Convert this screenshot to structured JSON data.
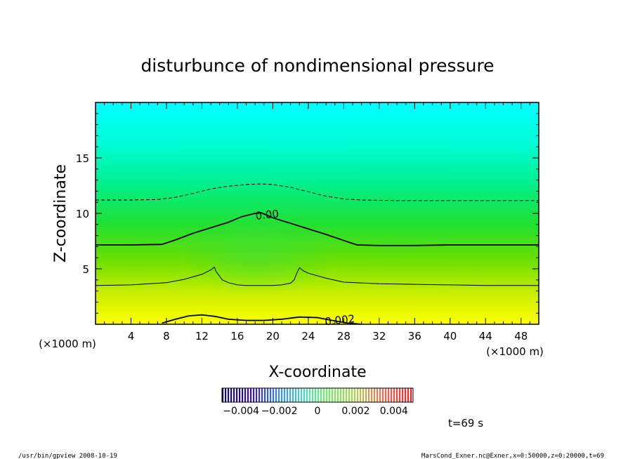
{
  "chart_data": {
    "type": "heatmap",
    "title": "disturbunce of nondimensional pressure",
    "xlabel": "X-coordinate",
    "ylabel": "Z-coordinate",
    "x_unit_left": "(×1000 m)",
    "x_unit_right": "(×1000 m)",
    "xlim": [
      0,
      50
    ],
    "ylim": [
      0,
      20
    ],
    "x_ticks": [
      4,
      8,
      12,
      16,
      20,
      24,
      28,
      32,
      36,
      40,
      44,
      48
    ],
    "y_ticks": [
      5,
      10,
      15
    ],
    "contours": [
      {
        "level": 0.002,
        "label": "0.002",
        "style": "solid",
        "x": [
          7.5,
          9,
          10.5,
          12,
          13.5,
          15,
          17,
          19,
          21,
          23,
          25,
          27,
          28.5,
          30
        ],
        "z": [
          0.1,
          0.45,
          0.75,
          0.85,
          0.7,
          0.45,
          0.35,
          0.35,
          0.45,
          0.65,
          0.6,
          0.3,
          0.1,
          0.0
        ]
      },
      {
        "level": 0.001,
        "label": "",
        "style": "thin",
        "x": [
          0,
          4,
          8,
          10,
          12,
          13,
          13.4,
          13.6,
          14.3,
          15,
          16,
          17,
          18,
          19,
          20,
          21,
          22,
          22.4,
          22.7,
          23,
          23.4,
          24,
          26,
          28,
          32,
          36,
          40,
          44,
          48,
          50
        ],
        "z": [
          3.5,
          3.55,
          3.75,
          4.05,
          4.5,
          4.9,
          5.15,
          4.75,
          4.0,
          3.75,
          3.55,
          3.5,
          3.5,
          3.5,
          3.5,
          3.55,
          3.7,
          4.0,
          4.6,
          5.1,
          4.85,
          4.6,
          4.15,
          3.8,
          3.65,
          3.6,
          3.55,
          3.5,
          3.5,
          3.5
        ]
      },
      {
        "level": 0.0,
        "label": "0.00",
        "style": "solid",
        "x": [
          0,
          4,
          7.5,
          9,
          11,
          13,
          15,
          16.5,
          18,
          18.7,
          20,
          22,
          24,
          26,
          28,
          29.5,
          32,
          36,
          40,
          44,
          48,
          50
        ],
        "z": [
          7.15,
          7.15,
          7.2,
          7.6,
          8.2,
          8.7,
          9.2,
          9.7,
          10.0,
          10.05,
          9.6,
          9.1,
          8.6,
          8.1,
          7.55,
          7.15,
          7.1,
          7.1,
          7.15,
          7.15,
          7.15,
          7.15
        ]
      },
      {
        "level": -0.001,
        "label": "",
        "style": "dashed",
        "x": [
          0,
          4,
          7,
          9,
          11,
          13,
          15,
          17,
          18.5,
          20,
          22,
          24,
          26,
          28,
          30,
          34,
          38,
          42,
          46,
          50
        ],
        "z": [
          11.2,
          11.2,
          11.25,
          11.45,
          11.8,
          12.2,
          12.45,
          12.6,
          12.65,
          12.6,
          12.35,
          11.95,
          11.55,
          11.3,
          11.2,
          11.15,
          11.15,
          11.15,
          11.15,
          11.15
        ]
      }
    ],
    "colorbar": {
      "min": -0.005,
      "max": 0.005,
      "tick_labels": [
        "−0.004",
        "−0.002",
        "0",
        "0.002",
        "0.004"
      ],
      "tick_values": [
        -0.004,
        -0.002,
        0,
        0.002,
        0.004
      ]
    },
    "time_label": "t=69 s"
  },
  "footer": {
    "left": "/usr/bin/gpview   2008-10-19",
    "right": "MarsCond_Exner.nc@Exner,x=0:50000,z=0:20000,t=69"
  },
  "colors": {
    "top": "#00ffff",
    "bottom": "#ffff00"
  }
}
